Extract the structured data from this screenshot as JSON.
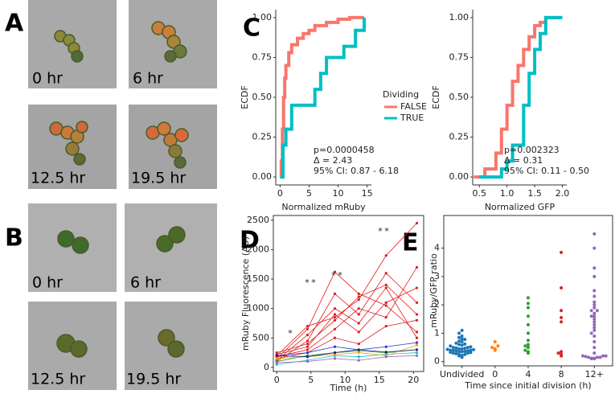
{
  "panels": [
    "A",
    "B",
    "C",
    "D",
    "E"
  ],
  "micrographs": {
    "A": [
      "0 hr",
      "6 hr",
      "12.5 hr",
      "19.5 hr"
    ],
    "B": [
      "0 hr",
      "6 hr",
      "12.5 hr",
      "19.5 hr"
    ]
  },
  "chart_data": [
    {
      "type": "ecdf",
      "xlabel": "Normalized mRuby",
      "ylabel": "ECDF",
      "xlim": [
        -0.75,
        15.75
      ],
      "ylim": [
        -0.05,
        1.05
      ],
      "xticks": [
        0,
        5,
        10,
        15
      ],
      "yticks": [
        {
          "value": 0,
          "label": "0.00"
        },
        {
          "value": 0.25,
          "label": "0.25"
        },
        {
          "value": 0.5,
          "label": "0.50"
        },
        {
          "value": 0.75,
          "label": "0.75"
        },
        {
          "value": 1,
          "label": "1.00"
        }
      ],
      "legend_title": "Dividing",
      "series": [
        {
          "name": "FALSE",
          "color": "#f8766d",
          "x": [
            0,
            0.2,
            0.4,
            0.6,
            0.8,
            1,
            1.5,
            2,
            3,
            4,
            5,
            6,
            8,
            10,
            12,
            14.5
          ],
          "values": [
            0,
            0.1,
            0.3,
            0.5,
            0.62,
            0.7,
            0.78,
            0.83,
            0.87,
            0.9,
            0.92,
            0.95,
            0.97,
            0.99,
            1,
            1
          ]
        },
        {
          "name": "TRUE",
          "color": "#00bfc4",
          "x": [
            0,
            0.5,
            1,
            2,
            3,
            5,
            6,
            7,
            8,
            10,
            11,
            12,
            13,
            14.5
          ],
          "values": [
            0,
            0.2,
            0.3,
            0.45,
            0.45,
            0.45,
            0.55,
            0.65,
            0.75,
            0.75,
            0.82,
            0.82,
            0.92,
            1
          ]
        }
      ],
      "annotations": [
        "p=0.0000458",
        "Δ = 2.43",
        "95% CI: 0.87 - 6.18"
      ]
    },
    {
      "type": "ecdf",
      "xlabel": "Normalized GFP",
      "ylabel": "ECDF",
      "xlim": [
        0.38,
        2.08
      ],
      "ylim": [
        -0.05,
        1.05
      ],
      "xticks": [
        0.5,
        {
          "value": 1,
          "label": "1.0"
        },
        1.5,
        {
          "value": 2,
          "label": "2.0"
        }
      ],
      "yticks": [
        {
          "value": 0,
          "label": "0.00"
        },
        {
          "value": 0.25,
          "label": "0.25"
        },
        {
          "value": 0.5,
          "label": "0.50"
        },
        {
          "value": 0.75,
          "label": "0.75"
        },
        {
          "value": 1,
          "label": "1.00"
        }
      ],
      "series": [
        {
          "color": "#f8766d",
          "x": [
            0.4,
            0.6,
            0.8,
            0.9,
            1.0,
            1.1,
            1.2,
            1.3,
            1.4,
            1.5,
            1.6,
            1.7,
            2.0
          ],
          "values": [
            0,
            0.05,
            0.15,
            0.3,
            0.45,
            0.6,
            0.7,
            0.8,
            0.88,
            0.95,
            0.97,
            1,
            1
          ]
        },
        {
          "color": "#00bfc4",
          "x": [
            0.5,
            0.8,
            0.9,
            1.0,
            1.1,
            1.2,
            1.3,
            1.4,
            1.5,
            1.6,
            1.7,
            2.0
          ],
          "values": [
            0,
            0,
            0.05,
            0.1,
            0.2,
            0.2,
            0.45,
            0.65,
            0.8,
            0.9,
            1,
            1
          ]
        }
      ],
      "annotations": [
        "p=0.002323",
        "Δ = 0.31",
        "95% CI: 0.11 - 0.50"
      ]
    },
    {
      "type": "line",
      "xlabel": "Time (h)",
      "ylabel": "mRuby Fluorescence (AU)",
      "xlim": [
        -0.5,
        21.5
      ],
      "ylim": [
        -70,
        2580
      ],
      "xticks": [
        0,
        5,
        10,
        15,
        20
      ],
      "yticks": [
        0,
        500,
        1000,
        1500,
        2000,
        2500
      ],
      "x": [
        0,
        4.5,
        8.5,
        12,
        16,
        20.5
      ],
      "series": [
        {
          "color": "#e41a1c",
          "values": [
            150,
            650,
            1620,
            1250,
            1050,
            600
          ]
        },
        {
          "color": "#e41a1c",
          "values": [
            200,
            700,
            850,
            1150,
            1900,
            2450
          ]
        },
        {
          "color": "#e41a1c",
          "values": [
            100,
            450,
            1250,
            900,
            1600,
            1100
          ]
        },
        {
          "color": "#e41a1c",
          "values": [
            250,
            400,
            800,
            1200,
            1400,
            900
          ]
        },
        {
          "color": "#e41a1c",
          "values": [
            180,
            300,
            650,
            1000,
            850,
            1700
          ]
        },
        {
          "color": "#e41a1c",
          "values": [
            120,
            550,
            1000,
            750,
            1350,
            500
          ]
        },
        {
          "color": "#e41a1c",
          "values": [
            220,
            350,
            900,
            600,
            1100,
            1350
          ]
        },
        {
          "color": "#e41a1c",
          "values": [
            150,
            250,
            500,
            400,
            700,
            800
          ]
        },
        {
          "color": "#1f3fd0",
          "values": [
            200,
            250,
            350,
            300,
            350,
            420
          ]
        },
        {
          "color": "#2ca02c",
          "values": [
            100,
            200,
            250,
            280,
            250,
            300
          ]
        },
        {
          "color": "#17becf",
          "values": [
            50,
            120,
            200,
            180,
            220,
            250
          ]
        },
        {
          "color": "#ff9f0e",
          "values": [
            150,
            180,
            220,
            250,
            200,
            380
          ]
        },
        {
          "color": "#9467bd",
          "values": [
            80,
            100,
            150,
            120,
            180,
            200
          ]
        },
        {
          "color": "#1a237e",
          "values": [
            200,
            180,
            250,
            300,
            260,
            300
          ]
        }
      ],
      "annotations": [
        {
          "text": "*",
          "color": "#000000"
        },
        {
          "text": "*",
          "color": "#000000"
        },
        {
          "text": "*",
          "color": "#e41a1c"
        },
        {
          "text": "*",
          "color": "#000000"
        },
        {
          "text": "*",
          "color": "#e41a1c"
        },
        {
          "text": "*",
          "color": "#000000"
        },
        {
          "text": "*",
          "color": "#e41a1c"
        }
      ]
    },
    {
      "type": "strip",
      "xlabel": "Time since initial division (h)",
      "ylabel": "mRuby/GFP ratio",
      "ylim": [
        -0.15,
        5.15
      ],
      "yticks": [
        0,
        1,
        2,
        3,
        4
      ],
      "categories": [
        "Undivided",
        "0",
        "4",
        "8",
        "12+"
      ],
      "colors": [
        "#1f77b4",
        "#ff7f0e",
        "#2ca02c",
        "#d62728",
        "#9467bd"
      ],
      "values": [
        [
          0.15,
          0.2,
          0.22,
          0.25,
          0.25,
          0.28,
          0.3,
          0.3,
          0.32,
          0.33,
          0.35,
          0.35,
          0.36,
          0.38,
          0.38,
          0.4,
          0.4,
          0.4,
          0.42,
          0.43,
          0.45,
          0.45,
          0.47,
          0.48,
          0.5,
          0.5,
          0.52,
          0.55,
          0.58,
          0.6,
          0.62,
          0.65,
          0.7,
          0.72,
          0.78,
          0.8,
          0.85,
          0.9,
          1.0,
          1.1
        ],
        [
          0.4,
          0.45,
          0.5,
          0.55,
          0.7
        ],
        [
          0.3,
          0.35,
          0.4,
          0.5,
          0.55,
          0.6,
          0.75,
          1.0,
          1.3,
          1.6,
          1.9,
          2.05,
          2.25
        ],
        [
          0.2,
          0.25,
          0.3,
          0.35,
          1.4,
          1.55,
          1.8,
          2.6,
          3.85
        ],
        [
          0.1,
          0.1,
          0.12,
          0.12,
          0.15,
          0.15,
          0.15,
          0.18,
          0.2,
          0.2,
          0.2,
          0.3,
          0.5,
          0.7,
          0.9,
          1.0,
          1.1,
          1.2,
          1.3,
          1.4,
          1.5,
          1.6,
          1.6,
          1.7,
          1.8,
          1.8,
          1.9,
          2.0,
          2.1,
          2.3,
          2.5,
          3.0,
          3.3,
          4.0,
          4.5
        ]
      ]
    }
  ]
}
